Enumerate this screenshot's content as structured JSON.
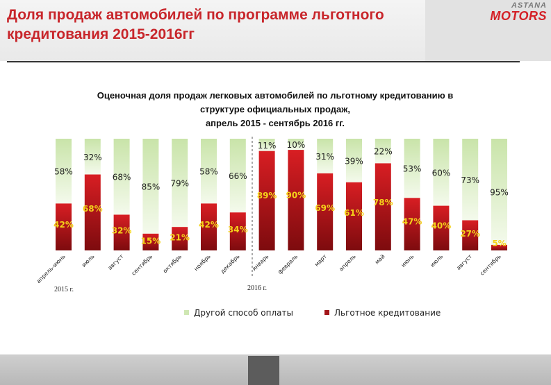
{
  "slide": {
    "title": "Доля продаж автомобилей по программе льготного кредитования 2015-2016гг"
  },
  "logo": {
    "top": "ASTANA",
    "bottom": "MOTORS"
  },
  "colors": {
    "title": "#c8262b",
    "credit_dark": "#8e0d10",
    "credit_light": "#d81e23",
    "other_light": "#f1f8e7",
    "other_dark": "#c9e4a9",
    "label_on_red": "#f4d21a"
  },
  "chart_data": {
    "type": "bar",
    "stacked": true,
    "percent": true,
    "title": "Оценочная доля продаж легковых автомобилей по льготному кредитованию в структуре официальных продаж, апрель 2015 - сентябрь 2016 гг.",
    "title_lines": [
      "Оценочная доля продаж легковых автомобилей по льготному кредитованию в",
      "структуре официальных продаж,",
      "апрель 2015 - сентябрь 2016 гг."
    ],
    "categories": [
      "апрель-июнь",
      "июль",
      "август",
      "сентябрь",
      "октябрь",
      "ноябрь",
      "декабрь",
      "январь",
      "февраль",
      "март",
      "апрель",
      "май",
      "июнь",
      "июль",
      "август",
      "сентябрь"
    ],
    "groups": [
      {
        "label": "2015 г.",
        "count": 7
      },
      {
        "label": "2016 г.",
        "count": 9
      }
    ],
    "series": [
      {
        "name": "Льготное кредитование",
        "values": [
          42,
          68,
          32,
          15,
          21,
          42,
          34,
          89,
          90,
          69,
          61,
          78,
          47,
          40,
          27,
          5
        ]
      },
      {
        "name": "Другой способ оплаты",
        "values": [
          58,
          32,
          68,
          85,
          79,
          58,
          66,
          11,
          10,
          31,
          39,
          22,
          53,
          60,
          73,
          95
        ]
      }
    ],
    "ylim": [
      0,
      100
    ],
    "grid": false,
    "legend_position": "bottom"
  }
}
